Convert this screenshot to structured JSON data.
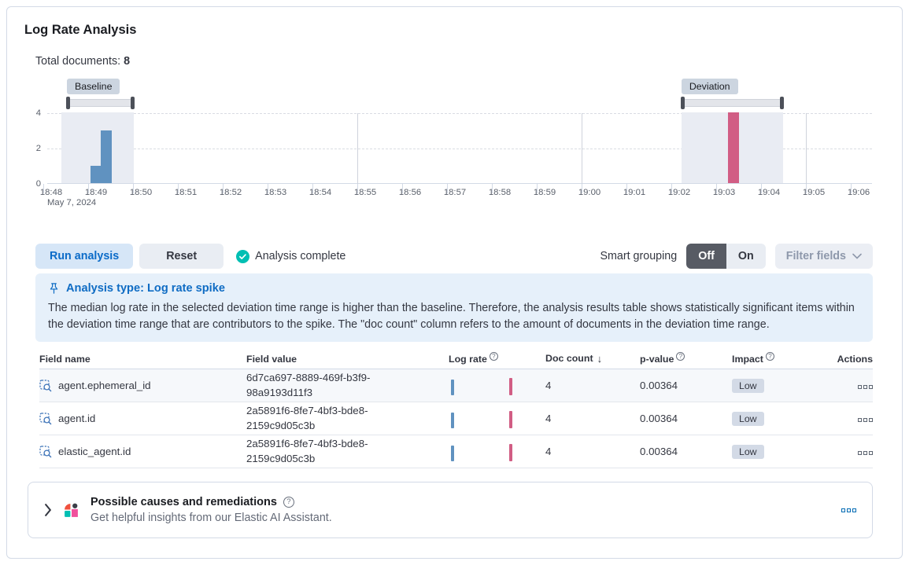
{
  "colors": {
    "baseline": "#6092c0",
    "deviation": "#d15d84",
    "primary_blue": "#0b6bc8",
    "success_green": "#00bfb3",
    "callout_bg": "#e6f0fa",
    "badge_bg": "#d3dae6"
  },
  "header": {
    "title": "Log Rate Analysis"
  },
  "summary": {
    "label": "Total documents:",
    "value": "8"
  },
  "chart_data": {
    "type": "bar",
    "ylabel": "",
    "xlabel": "",
    "y_axis": {
      "ticks": [
        0,
        2,
        4
      ],
      "max": 4
    },
    "x_axis": {
      "tick_labels": [
        "18:48",
        "18:49",
        "18:50",
        "18:51",
        "18:52",
        "18:53",
        "18:54",
        "18:55",
        "18:56",
        "18:57",
        "18:58",
        "18:59",
        "19:00",
        "19:01",
        "19:02",
        "19:03",
        "19:04",
        "19:05",
        "19:06"
      ],
      "first_tick_sublabel": "May 7, 2024",
      "major_gridline_ticks": [
        7,
        12,
        17
      ]
    },
    "series": [
      {
        "name": "Baseline",
        "color": "#6092c0",
        "bars": [
          {
            "offset_min": 0.88,
            "width_min": 0.23,
            "value": 1
          },
          {
            "offset_min": 1.11,
            "width_min": 0.24,
            "value": 3
          }
        ]
      },
      {
        "name": "Deviation",
        "color": "#d15d84",
        "bars": [
          {
            "offset_min": 15.09,
            "width_min": 0.24,
            "value": 4
          }
        ]
      }
    ],
    "windows": {
      "baseline": {
        "label": "Baseline",
        "brush_start_min": 0.35,
        "brush_end_min": 1.84,
        "shade_start_min": 0.23,
        "shade_end_min": 1.84
      },
      "deviation": {
        "label": "Deviation",
        "brush_start_min": 14.05,
        "brush_end_min": 16.32,
        "shade_start_min": 14.05,
        "shade_end_min": 16.32
      }
    }
  },
  "controls": {
    "run_button": "Run analysis",
    "reset_button": "Reset",
    "status": "Analysis complete",
    "smart_grouping_label": "Smart grouping",
    "toggle_off": "Off",
    "toggle_on": "On",
    "filter_fields": "Filter fields"
  },
  "callout": {
    "title": "Analysis type: Log rate spike",
    "body": "The median log rate in the selected deviation time range is higher than the baseline. Therefore, the analysis results table shows statistically significant items within the deviation time range that are contributors to the spike. The \"doc count\" column refers to the amount of documents in the deviation time range."
  },
  "table": {
    "columns": [
      {
        "label": "Field name"
      },
      {
        "label": "Field value"
      },
      {
        "label": "Log rate",
        "info": true
      },
      {
        "label": "Doc count",
        "sorted": "desc"
      },
      {
        "label": "p-value",
        "info": true
      },
      {
        "label": "Impact",
        "info": true
      },
      {
        "label": "Actions",
        "align": "right"
      }
    ],
    "rows": [
      {
        "field_name": "agent.ephemeral_id",
        "field_value": "6d7ca697-8889-469f-b3f9-98a9193d11f3",
        "doc_count": "4",
        "p_value": "0.00364",
        "impact": "Low"
      },
      {
        "field_name": "agent.id",
        "field_value": "2a5891f6-8fe7-4bf3-bde8-2159c9d05c3b",
        "doc_count": "4",
        "p_value": "0.00364",
        "impact": "Low"
      },
      {
        "field_name": "elastic_agent.id",
        "field_value": "2a5891f6-8fe7-4bf3-bde8-2159c9d05c3b",
        "doc_count": "4",
        "p_value": "0.00364",
        "impact": "Low"
      }
    ]
  },
  "ai_panel": {
    "title": "Possible causes and remediations",
    "subtitle": "Get helpful insights from our Elastic AI Assistant."
  }
}
